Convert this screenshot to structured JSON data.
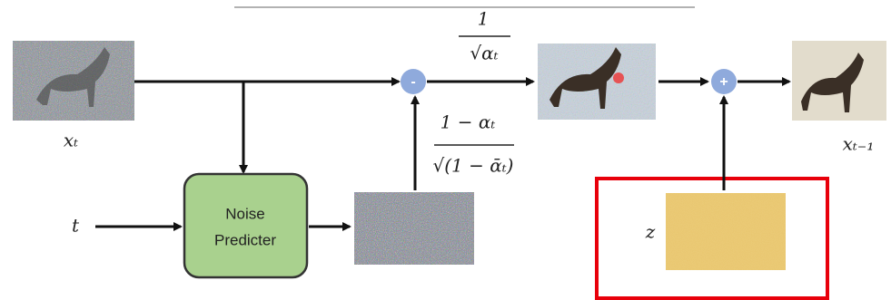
{
  "inputs": {
    "image_label": "xₜ",
    "timestep": "t"
  },
  "noise_predictor": {
    "line1": "Noise",
    "line2": "Predicter"
  },
  "operators": {
    "subtract": "-",
    "add": "+"
  },
  "scale_fraction": {
    "numerator": "1",
    "denominator": "√αₜ"
  },
  "noise_fraction": {
    "numerator": "1 − αₜ",
    "denominator": "√(1 − ᾱₜ)"
  },
  "output": {
    "image_label": "xₜ₋₁"
  },
  "noise_sample": {
    "label": "z"
  }
}
